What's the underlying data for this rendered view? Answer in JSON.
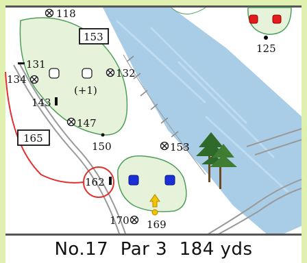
{
  "colors": {
    "frame": "#dff0b0",
    "map_bg": "#ffffff",
    "water": "#a9cde6",
    "green_fill": "#e6f2d9",
    "green_edge": "#4f9e5a",
    "red_circle": "#e03030",
    "tee_blue": "#1a2fd6",
    "tee_red": "#e21b1b",
    "arrow_yellow": "#f2c400"
  },
  "labels": {
    "l118": "118",
    "l153_box": "153",
    "l125": "125",
    "l131": "131",
    "l134": "134",
    "l132": "132",
    "l143": "143",
    "l_plus1": "(+1)",
    "l147": "147",
    "l150": "150",
    "l165_box": "165",
    "l153": "153",
    "l162": "162",
    "l170": "170",
    "l169": "169"
  },
  "caption": {
    "hole": "No.17",
    "par": "Par 3",
    "distance": "184 yds"
  },
  "icons": {
    "sprinkler": "circle-cross-icon",
    "marker_post": "black-bar-icon",
    "tree": "pine-tree-icon",
    "tee_arrow": "yellow-arrow-icon"
  }
}
